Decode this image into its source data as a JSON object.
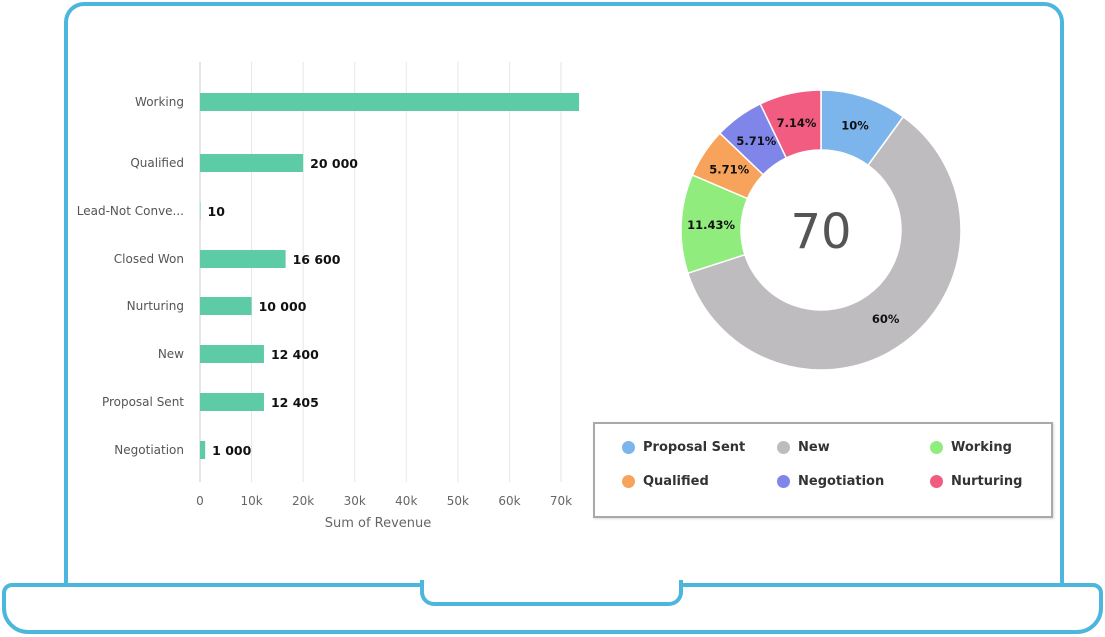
{
  "chart_data": [
    {
      "type": "bar",
      "orientation": "horizontal",
      "categories": [
        "Working",
        "Qualified",
        "Lead-Not Conve...",
        "Closed Won",
        "Nurturing",
        "New",
        "Proposal Sent",
        "Negotiation"
      ],
      "values": [
        73500,
        20000,
        10,
        16600,
        10000,
        12400,
        12405,
        1000
      ],
      "data_labels": [
        "",
        "20 000",
        "10",
        "16 600",
        "10 000",
        "12 400",
        "12 405",
        "1 000"
      ],
      "xlabel": "Sum of Revenue",
      "xticks": [
        "0",
        "10k",
        "20k",
        "30k",
        "40k",
        "50k",
        "60k",
        "70k"
      ],
      "xlim": [
        0,
        75000
      ],
      "grid": "vertical",
      "color": "#5ccba6"
    },
    {
      "type": "pie",
      "variant": "donut",
      "center_label": "70",
      "slices": [
        {
          "name": "Proposal Sent",
          "value": 10,
          "label": "10%",
          "color": "#7cb5ec"
        },
        {
          "name": "New",
          "value": 60,
          "label": "60%",
          "color": "#bebcbe"
        },
        {
          "name": "Working",
          "value": 11.43,
          "label": "11.43%",
          "color": "#90ed7d"
        },
        {
          "name": "Qualified",
          "value": 5.71,
          "label": "5.71%",
          "color": "#f7a35c"
        },
        {
          "name": "Negotiation",
          "value": 5.71,
          "label": "5.71%",
          "color": "#8085e9"
        },
        {
          "name": "Nurturing",
          "value": 7.14,
          "label": "7.14%",
          "color": "#f15c80"
        }
      ],
      "legend": {
        "placement": "bottom-right",
        "items": [
          {
            "name": "Proposal Sent",
            "color": "#7cb5ec"
          },
          {
            "name": "New",
            "color": "#bebcbe"
          },
          {
            "name": "Working",
            "color": "#90ed7d"
          },
          {
            "name": "Qualified",
            "color": "#f7a35c"
          },
          {
            "name": "Negotiation",
            "color": "#8085e9"
          },
          {
            "name": "Nurturing",
            "color": "#f15c80"
          }
        ]
      }
    }
  ],
  "colors": {
    "frame": "#4cb6dd",
    "gridline": "#e6e6e6",
    "axis_text": "#666666"
  }
}
